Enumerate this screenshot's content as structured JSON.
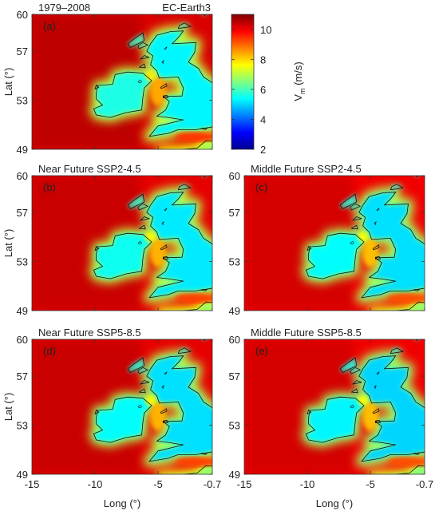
{
  "chart_data": {
    "type": "heatmap",
    "variable": "V_m",
    "colorbar": {
      "label_main": "V",
      "label_sub": "m",
      "label_unit": " (m/s)",
      "range": [
        2,
        11
      ],
      "ticks": [
        "10",
        "8",
        "6",
        "4",
        "2"
      ],
      "tick_values": [
        10,
        8,
        6,
        4,
        2
      ],
      "colors": [
        "#00008f",
        "#0000ff",
        "#0080ff",
        "#00ffff",
        "#80ff80",
        "#ffff00",
        "#ff8000",
        "#ff0000",
        "#800000"
      ]
    },
    "x_axis": {
      "label": "Long (°)",
      "ticks": [
        "-15",
        "-10",
        "-5",
        "-0.7"
      ],
      "tick_values": [
        -15,
        -10,
        -5,
        -0.7
      ],
      "range": [
        -15,
        -0.7
      ]
    },
    "y_axis": {
      "label": "Lat (°)",
      "ticks": [
        "60",
        "57",
        "53",
        "49"
      ],
      "tick_values": [
        60,
        57,
        53,
        49
      ],
      "range": [
        49,
        60
      ]
    },
    "panels": [
      {
        "tag": "(a)",
        "title_left": "1979–2008",
        "title_right": "EC-Earth3",
        "ocean_ms": 9.6,
        "land_ms": 5.3
      },
      {
        "tag": "(b)",
        "title_left": "Near Future SSP2-4.5",
        "title_right": "",
        "ocean_ms": 9.5,
        "land_ms": 5.2
      },
      {
        "tag": "(c)",
        "title_left": "Middle Future SSP2-4.5",
        "title_right": "",
        "ocean_ms": 9.4,
        "land_ms": 5.1
      },
      {
        "tag": "(d)",
        "title_left": "Near Future SSP5-8.5",
        "title_right": "",
        "ocean_ms": 9.5,
        "land_ms": 5.1
      },
      {
        "tag": "(e)",
        "title_left": "Middle Future SSP5-8.5",
        "title_right": "",
        "ocean_ms": 9.4,
        "land_ms": 5.0
      }
    ]
  }
}
